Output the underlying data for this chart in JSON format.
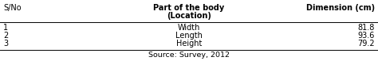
{
  "col1_header": "S/No",
  "col2_header_line1": "Part of the body",
  "col2_header_line2": "(Location)",
  "col3_header": "Dimension (cm)",
  "rows": [
    {
      "sno": "1",
      "part": "Width",
      "dimension": "81.8"
    },
    {
      "sno": "2",
      "part": "Length",
      "dimension": "93.6"
    },
    {
      "sno": "3",
      "part": "Height",
      "dimension": "79.2"
    }
  ],
  "source": "Source: Survey, 2012",
  "bg_color": "#ffffff",
  "text_color": "#000000",
  "line_color": "#000000",
  "header_fontsize": 7.0,
  "data_fontsize": 7.0,
  "source_fontsize": 6.8,
  "fig_width": 4.74,
  "fig_height": 0.77,
  "dpi": 100
}
